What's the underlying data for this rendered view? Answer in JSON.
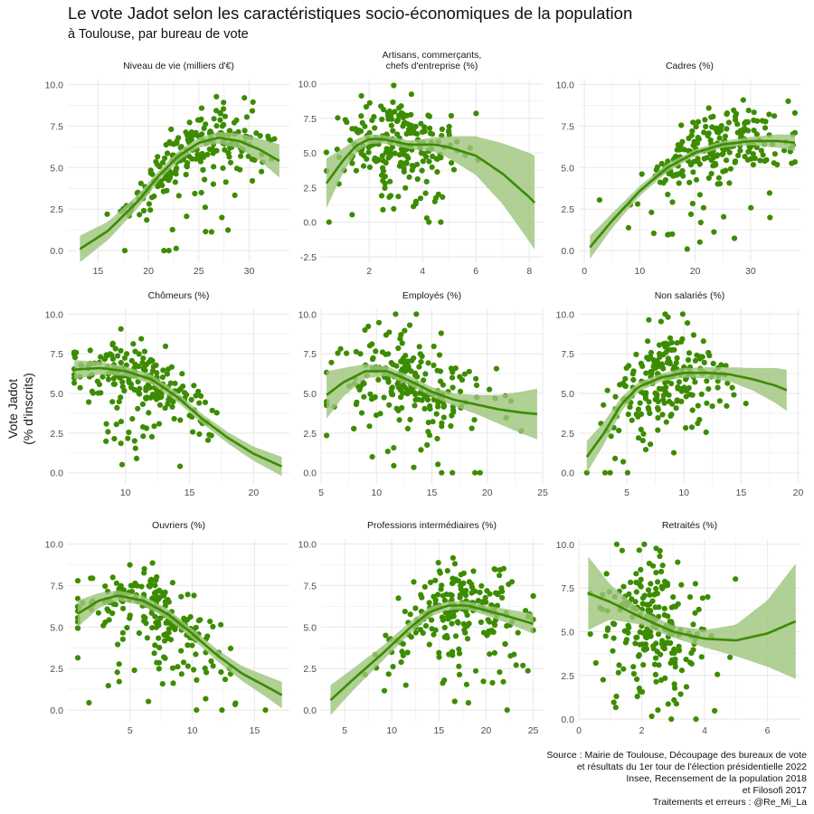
{
  "chart_data": {
    "type": "scatter",
    "title": "Le vote Jadot selon les caractéristiques socio-économiques de la population",
    "subtitle": "à Toulouse, par bureau de vote",
    "ylabel_lines": [
      "Vote Jadot",
      "(% d'inscrits)"
    ],
    "caption_lines": [
      "Source : Mairie de Toulouse, Découpage des bureaux de vote",
      "et résultats du 1er tour de l'élection présidentielle 2022",
      "Insee, Recensement de la population 2018",
      "et Filosofi 2017",
      "Traitements et erreurs : @Re_Mi_La"
    ],
    "colors": {
      "points": "#3c8c00",
      "smooth_line": "#3c8c00",
      "ribbon": "#9cc47a",
      "grid": "#ebebeb"
    },
    "grid": true,
    "panels": [
      {
        "title_lines": [
          "Niveau de vie (milliers d'€)"
        ],
        "xlim": [
          12,
          34
        ],
        "ylim": [
          -0.7,
          10.3
        ],
        "xticks": [
          15,
          20,
          25,
          30
        ],
        "yticks": [
          0,
          2.5,
          5,
          7.5,
          10
        ],
        "x_min": 13.2,
        "x_max": 33.0,
        "x_center": 24.5,
        "x_sd": 3.6,
        "trend": [
          [
            13.2,
            0.1
          ],
          [
            16,
            1.2
          ],
          [
            19,
            3.0
          ],
          [
            21,
            4.5
          ],
          [
            23,
            5.7
          ],
          [
            25,
            6.5
          ],
          [
            27,
            6.8
          ],
          [
            29,
            6.6
          ],
          [
            31,
            6.1
          ],
          [
            33,
            5.4
          ]
        ],
        "ribbon": [
          [
            13.2,
            0.8
          ],
          [
            16,
            0.55
          ],
          [
            19,
            0.4
          ],
          [
            21,
            0.3
          ],
          [
            23,
            0.3
          ],
          [
            25,
            0.3
          ],
          [
            27,
            0.35
          ],
          [
            29,
            0.45
          ],
          [
            31,
            0.65
          ],
          [
            33,
            1.0
          ]
        ],
        "noise": 1.05,
        "n_points": 230
      },
      {
        "title_lines": [
          "Artisans, commerçants,",
          "chefs d'entreprise (%)"
        ],
        "xlim": [
          0.2,
          8.5
        ],
        "ylim": [
          -2.9,
          10.3
        ],
        "xticks": [
          2,
          4,
          6,
          8
        ],
        "yticks": [
          -2.5,
          0,
          2.5,
          5,
          7.5,
          10
        ],
        "x_min": 0.4,
        "x_max": 8.2,
        "x_center": 3.1,
        "x_sd": 1.1,
        "trend": [
          [
            0.4,
            2.8
          ],
          [
            1,
            4.4
          ],
          [
            1.5,
            5.5
          ],
          [
            2,
            6.0
          ],
          [
            2.5,
            6.0
          ],
          [
            3,
            5.8
          ],
          [
            3.5,
            5.6
          ],
          [
            4,
            5.6
          ],
          [
            4.5,
            5.6
          ],
          [
            5,
            5.4
          ],
          [
            6,
            4.8
          ],
          [
            7,
            3.5
          ],
          [
            8,
            1.8
          ],
          [
            8.2,
            1.4
          ]
        ],
        "ribbon": [
          [
            0.4,
            1.8
          ],
          [
            1,
            0.9
          ],
          [
            1.5,
            0.5
          ],
          [
            2,
            0.35
          ],
          [
            2.5,
            0.3
          ],
          [
            3,
            0.3
          ],
          [
            3.5,
            0.3
          ],
          [
            4,
            0.4
          ],
          [
            4.5,
            0.55
          ],
          [
            5,
            0.8
          ],
          [
            6,
            1.4
          ],
          [
            7,
            2.2
          ],
          [
            8,
            3.2
          ],
          [
            8.2,
            3.4
          ]
        ],
        "noise": 1.5,
        "n_points": 230
      },
      {
        "title_lines": [
          "Cadres (%)"
        ],
        "xlim": [
          -1,
          39
        ],
        "ylim": [
          -0.7,
          10.3
        ],
        "xticks": [
          0,
          10,
          20,
          30
        ],
        "yticks": [
          0,
          2.5,
          5,
          7.5,
          10
        ],
        "x_min": 1.0,
        "x_max": 38.0,
        "x_center": 23,
        "x_sd": 7.5,
        "trend": [
          [
            1,
            0.2
          ],
          [
            5,
            1.8
          ],
          [
            10,
            3.6
          ],
          [
            15,
            5.0
          ],
          [
            20,
            5.9
          ],
          [
            25,
            6.4
          ],
          [
            30,
            6.6
          ],
          [
            35,
            6.6
          ],
          [
            38,
            6.5
          ]
        ],
        "ribbon": [
          [
            1,
            0.7
          ],
          [
            5,
            0.45
          ],
          [
            10,
            0.3
          ],
          [
            15,
            0.25
          ],
          [
            20,
            0.2
          ],
          [
            25,
            0.2
          ],
          [
            30,
            0.25
          ],
          [
            35,
            0.4
          ],
          [
            38,
            0.5
          ]
        ],
        "noise": 1.0,
        "n_points": 230
      },
      {
        "title_lines": [
          "Chômeurs (%)"
        ],
        "xlim": [
          5.5,
          22.8
        ],
        "ylim": [
          -0.7,
          10.3
        ],
        "xticks": [
          10,
          15,
          20
        ],
        "yticks": [
          0,
          2.5,
          5,
          7.5,
          10
        ],
        "x_min": 6.0,
        "x_max": 22.2,
        "x_center": 11,
        "x_sd": 2.8,
        "trend": [
          [
            6,
            6.5
          ],
          [
            8,
            6.6
          ],
          [
            10,
            6.4
          ],
          [
            12,
            5.9
          ],
          [
            14,
            4.8
          ],
          [
            16,
            3.4
          ],
          [
            18,
            2.2
          ],
          [
            20,
            1.2
          ],
          [
            22.2,
            0.4
          ]
        ],
        "ribbon": [
          [
            6,
            0.6
          ],
          [
            8,
            0.4
          ],
          [
            10,
            0.3
          ],
          [
            12,
            0.3
          ],
          [
            14,
            0.3
          ],
          [
            16,
            0.3
          ],
          [
            18,
            0.35
          ],
          [
            20,
            0.45
          ],
          [
            22.2,
            0.6
          ]
        ],
        "noise": 1.1,
        "n_points": 230
      },
      {
        "title_lines": [
          "Employés (%)"
        ],
        "xlim": [
          5,
          25
        ],
        "ylim": [
          -0.7,
          10.3
        ],
        "xticks": [
          5,
          10,
          15,
          20,
          25
        ],
        "yticks": [
          0,
          2.5,
          5,
          7.5,
          10
        ],
        "x_min": 5.5,
        "x_max": 24.5,
        "x_center": 13,
        "x_sd": 3.3,
        "trend": [
          [
            5.5,
            4.9
          ],
          [
            7,
            5.7
          ],
          [
            9,
            6.4
          ],
          [
            11,
            6.4
          ],
          [
            13,
            5.8
          ],
          [
            15,
            5.1
          ],
          [
            17,
            4.6
          ],
          [
            19,
            4.3
          ],
          [
            21,
            4.0
          ],
          [
            23,
            3.8
          ],
          [
            24.5,
            3.7
          ]
        ],
        "ribbon": [
          [
            5.5,
            1.5
          ],
          [
            7,
            0.9
          ],
          [
            9,
            0.45
          ],
          [
            11,
            0.3
          ],
          [
            13,
            0.3
          ],
          [
            15,
            0.3
          ],
          [
            17,
            0.4
          ],
          [
            19,
            0.6
          ],
          [
            21,
            0.9
          ],
          [
            23,
            1.3
          ],
          [
            24.5,
            1.6
          ]
        ],
        "noise": 1.6,
        "n_points": 230
      },
      {
        "title_lines": [
          "Non salariés (%)"
        ],
        "xlim": [
          0.8,
          20.2
        ],
        "ylim": [
          -0.7,
          10.3
        ],
        "xticks": [
          5,
          10,
          15,
          20
        ],
        "yticks": [
          0,
          2.5,
          5,
          7.5,
          10
        ],
        "x_min": 1.5,
        "x_max": 19.0,
        "x_center": 8,
        "x_sd": 2.6,
        "trend": [
          [
            1.5,
            1.0
          ],
          [
            3,
            2.5
          ],
          [
            4.5,
            4.3
          ],
          [
            6,
            5.4
          ],
          [
            8,
            6.0
          ],
          [
            10,
            6.3
          ],
          [
            12,
            6.3
          ],
          [
            14,
            6.2
          ],
          [
            16,
            5.9
          ],
          [
            18,
            5.5
          ],
          [
            19,
            5.2
          ]
        ],
        "ribbon": [
          [
            1.5,
            1.0
          ],
          [
            3,
            0.7
          ],
          [
            4.5,
            0.45
          ],
          [
            6,
            0.3
          ],
          [
            8,
            0.25
          ],
          [
            10,
            0.3
          ],
          [
            12,
            0.35
          ],
          [
            14,
            0.45
          ],
          [
            16,
            0.7
          ],
          [
            18,
            1.1
          ],
          [
            19,
            1.3
          ]
        ],
        "noise": 1.4,
        "n_points": 230
      },
      {
        "title_lines": [
          "Ouvriers (%)"
        ],
        "xlim": [
          0,
          17.8
        ],
        "ylim": [
          -0.7,
          10.3
        ],
        "xticks": [
          5,
          10,
          15
        ],
        "yticks": [
          0,
          2.5,
          5,
          7.5,
          10
        ],
        "x_min": 0.8,
        "x_max": 17.2,
        "x_center": 6.5,
        "x_sd": 3.2,
        "trend": [
          [
            0.8,
            5.8
          ],
          [
            2.5,
            6.6
          ],
          [
            4,
            6.9
          ],
          [
            6,
            6.6
          ],
          [
            8,
            5.8
          ],
          [
            10,
            4.6
          ],
          [
            12,
            3.3
          ],
          [
            14,
            2.2
          ],
          [
            16,
            1.4
          ],
          [
            17.2,
            0.9
          ]
        ],
        "ribbon": [
          [
            0.8,
            0.8
          ],
          [
            2.5,
            0.45
          ],
          [
            4,
            0.3
          ],
          [
            6,
            0.3
          ],
          [
            8,
            0.3
          ],
          [
            10,
            0.3
          ],
          [
            12,
            0.35
          ],
          [
            14,
            0.45
          ],
          [
            16,
            0.65
          ],
          [
            17.2,
            0.8
          ]
        ],
        "noise": 1.15,
        "n_points": 230
      },
      {
        "title_lines": [
          "Professions intermédiaires (%)"
        ],
        "xlim": [
          2.5,
          26
        ],
        "ylim": [
          -0.7,
          10.3
        ],
        "xticks": [
          5,
          10,
          15,
          20,
          25
        ],
        "yticks": [
          0,
          2.5,
          5,
          7.5,
          10
        ],
        "x_min": 3.5,
        "x_max": 25.0,
        "x_center": 17,
        "x_sd": 3.8,
        "trend": [
          [
            3.5,
            0.6
          ],
          [
            6,
            1.9
          ],
          [
            9,
            3.4
          ],
          [
            12,
            5.0
          ],
          [
            14,
            5.9
          ],
          [
            16,
            6.3
          ],
          [
            18,
            6.3
          ],
          [
            20,
            6.0
          ],
          [
            22,
            5.7
          ],
          [
            25,
            5.2
          ]
        ],
        "ribbon": [
          [
            3.5,
            0.9
          ],
          [
            6,
            0.65
          ],
          [
            9,
            0.45
          ],
          [
            12,
            0.35
          ],
          [
            14,
            0.3
          ],
          [
            16,
            0.25
          ],
          [
            18,
            0.25
          ],
          [
            20,
            0.3
          ],
          [
            22,
            0.4
          ],
          [
            25,
            0.6
          ]
        ],
        "noise": 1.3,
        "n_points": 230
      },
      {
        "title_lines": [
          "Retraités (%)"
        ],
        "xlim": [
          0,
          7.05
        ],
        "ylim": [
          -0.15,
          10.3
        ],
        "xticks": [
          0,
          2,
          4,
          6
        ],
        "yticks": [
          0,
          2.5,
          5,
          7.5,
          10
        ],
        "x_min": 0.3,
        "x_max": 6.9,
        "x_center": 2.4,
        "x_sd": 0.9,
        "trend": [
          [
            0.3,
            7.2
          ],
          [
            1,
            6.7
          ],
          [
            2,
            5.8
          ],
          [
            3,
            5.0
          ],
          [
            4,
            4.6
          ],
          [
            5,
            4.5
          ],
          [
            6,
            4.9
          ],
          [
            6.9,
            5.6
          ]
        ],
        "ribbon": [
          [
            0.3,
            2.1
          ],
          [
            1,
            1.0
          ],
          [
            2,
            0.4
          ],
          [
            3,
            0.35
          ],
          [
            4,
            0.5
          ],
          [
            5,
            0.9
          ],
          [
            6,
            1.9
          ],
          [
            6.9,
            3.3
          ]
        ],
        "noise": 1.7,
        "n_points": 230
      }
    ]
  }
}
